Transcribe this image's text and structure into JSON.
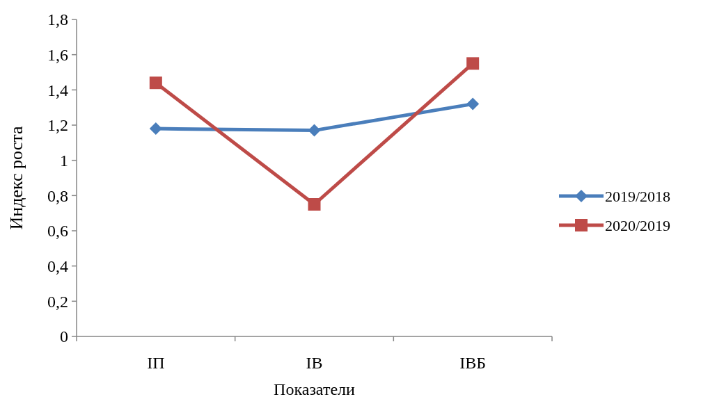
{
  "chart_data": {
    "type": "line",
    "xlabel": "Показатели",
    "ylabel": "Индекс роста",
    "categories": [
      "IП",
      "IВ",
      "IВБ"
    ],
    "ylim": [
      0,
      1.8
    ],
    "yticks": [
      0,
      {
        "value": 0.2,
        "label": "0,2"
      },
      {
        "value": 0.4,
        "label": "0,4"
      },
      {
        "value": 0.6,
        "label": "0,6"
      },
      {
        "value": 0.8,
        "label": "0,8"
      },
      1,
      {
        "value": 1.2,
        "label": "1,2"
      },
      {
        "value": 1.4,
        "label": "1,4"
      },
      {
        "value": 1.6,
        "label": "1,6"
      },
      {
        "value": 1.8,
        "label": "1,8"
      }
    ],
    "grid": false,
    "legend": "right",
    "line_style": "solid",
    "series": [
      {
        "name": "2019/2018",
        "color": "#4a7ebb",
        "marker": "diamond",
        "values": [
          1.18,
          1.17,
          1.32
        ]
      },
      {
        "name": "2020/2019",
        "color": "#be4b48",
        "marker": "square",
        "values": [
          1.44,
          0.75,
          1.55
        ]
      }
    ]
  }
}
